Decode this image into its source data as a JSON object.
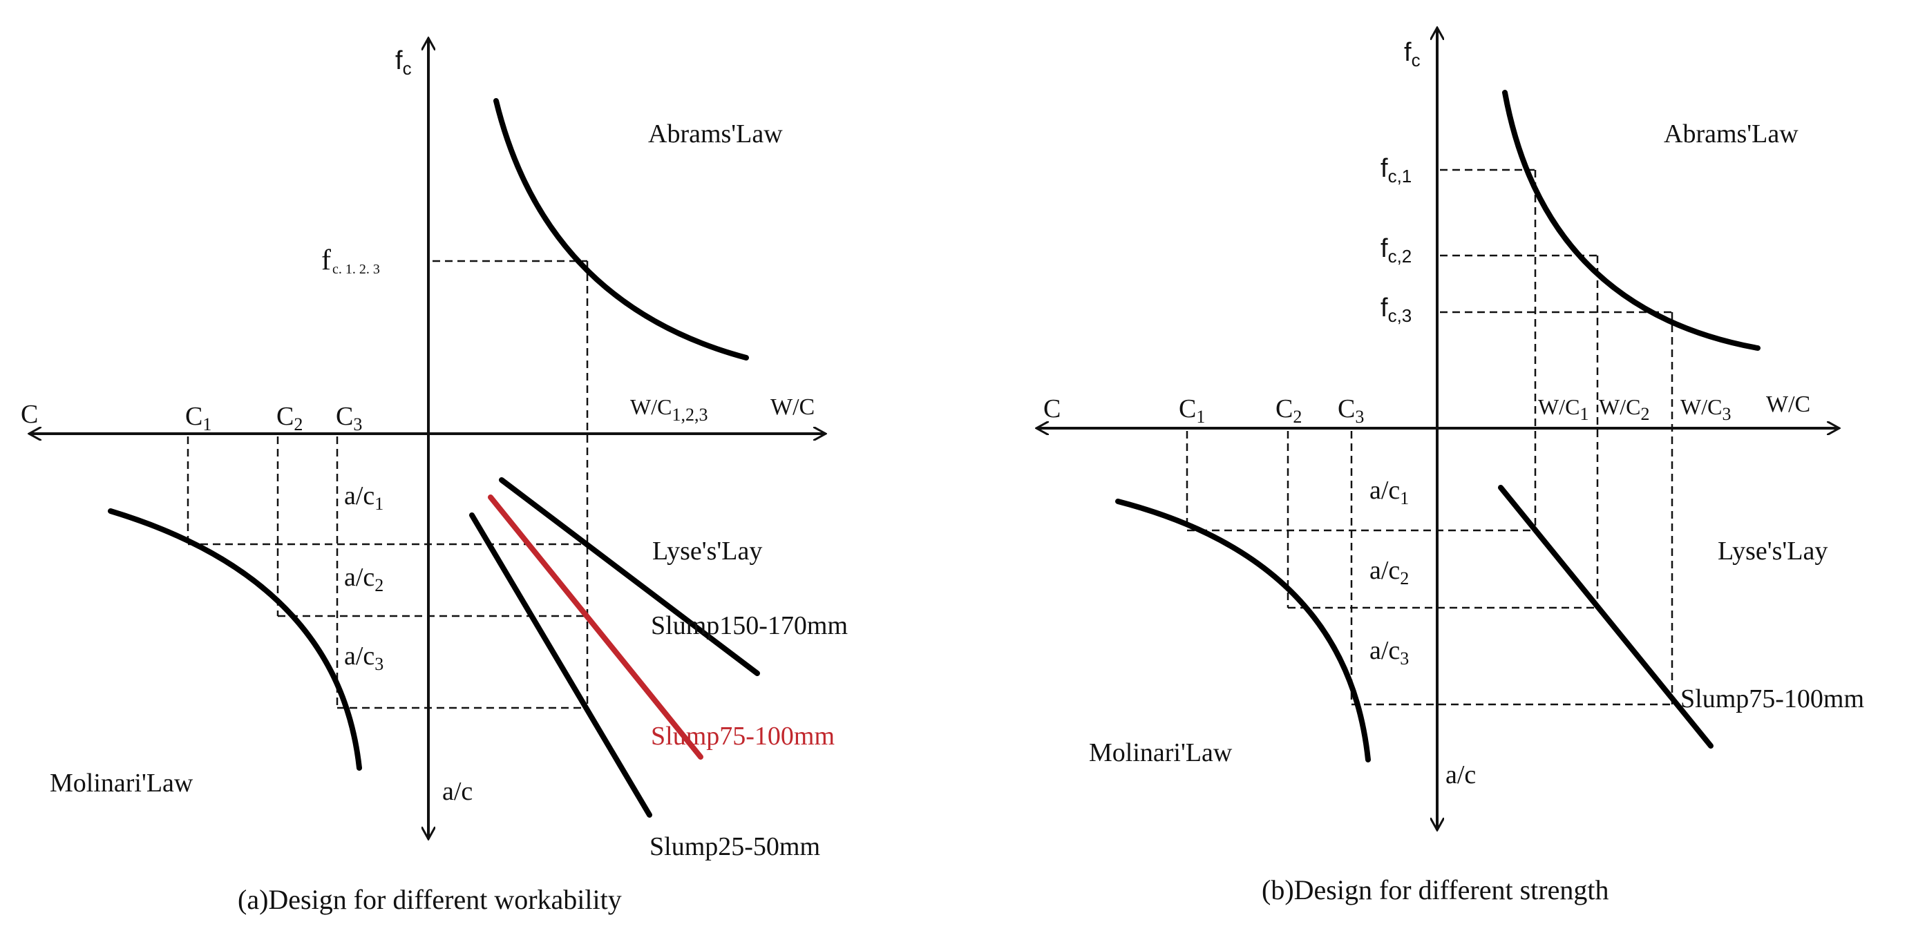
{
  "colors": {
    "ink": "#000000",
    "highlight": "#c1272d"
  },
  "panel_a": {
    "caption": "(a)Design for different workability",
    "axes": {
      "y_pos": "f",
      "y_pos_sub": "c",
      "y_neg": "a/c",
      "x_pos": "W/C",
      "x_neg": "C"
    },
    "fc_label_main": "f",
    "fc_label_sub": "c. 1. 2. 3",
    "wc_label_main": "W/C",
    "wc_label_sub": "1,2,3",
    "c_labels": [
      {
        "main": "C",
        "sub": "1"
      },
      {
        "main": "C",
        "sub": "2"
      },
      {
        "main": "C",
        "sub": "3"
      }
    ],
    "ac_labels": [
      {
        "main": "a/c",
        "sub": "1"
      },
      {
        "main": "a/c",
        "sub": "2"
      },
      {
        "main": "a/c",
        "sub": "3"
      }
    ],
    "abrams": "Abrams'Law",
    "lyse": "Lyse's'Lay",
    "molinari": "Molinari'Law",
    "slumps": [
      "Slump150-170mm",
      "Slump75-100mm",
      "Slump25-50mm"
    ]
  },
  "panel_b": {
    "caption": "(b)Design for different strength",
    "axes": {
      "y_pos": "f",
      "y_pos_sub": "c",
      "y_neg": "a/c",
      "x_pos": "W/C",
      "x_neg": "C"
    },
    "fc_labels": [
      {
        "main": "f",
        "sub": "c,1"
      },
      {
        "main": "f",
        "sub": "c,2"
      },
      {
        "main": "f",
        "sub": "c,3"
      }
    ],
    "wc_labels": [
      {
        "main": "W/C",
        "sub": "1"
      },
      {
        "main": "W/C",
        "sub": "2"
      },
      {
        "main": "W/C",
        "sub": "3"
      }
    ],
    "c_labels": [
      {
        "main": "C",
        "sub": "1"
      },
      {
        "main": "C",
        "sub": "2"
      },
      {
        "main": "C",
        "sub": "3"
      }
    ],
    "ac_labels": [
      {
        "main": "a/c",
        "sub": "1"
      },
      {
        "main": "a/c",
        "sub": "2"
      },
      {
        "main": "a/c",
        "sub": "3"
      }
    ],
    "abrams": "Abrams'Law",
    "lyse": "Lyse's'Lay",
    "molinari": "Molinari'Law",
    "slump": "Slump75-100mm"
  }
}
